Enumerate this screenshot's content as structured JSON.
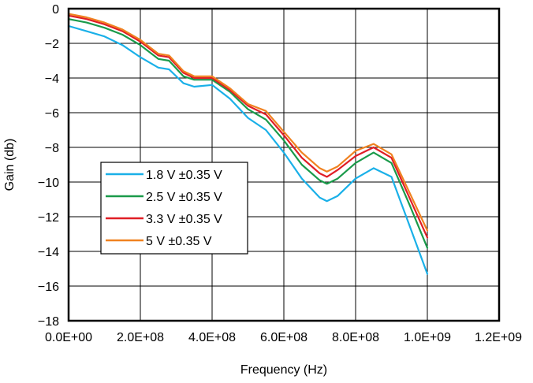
{
  "chart_data": {
    "type": "line",
    "title": "",
    "xlabel": "Frequency (Hz)",
    "ylabel": "Gain (db)",
    "xlim": [
      0,
      1200000000
    ],
    "ylim": [
      -18,
      0
    ],
    "x_tick_labels": [
      "0.0E+00",
      "2.0E+08",
      "4.0E+08",
      "6.0E+08",
      "8.0E+08",
      "1.0E+09",
      "1.2E+09"
    ],
    "y_tick_labels": [
      "0",
      "−2",
      "−4",
      "−6",
      "−8",
      "−10",
      "−12",
      "−14",
      "−16",
      "−18"
    ],
    "grid": true,
    "legend_position": "left-middle",
    "series": [
      {
        "name": "1.8 V ±0.35 V",
        "color": "#1ab0e8",
        "x": [
          0,
          50000000,
          100000000,
          150000000,
          200000000,
          250000000,
          280000000,
          320000000,
          350000000,
          400000000,
          450000000,
          500000000,
          550000000,
          600000000,
          650000000,
          700000000,
          720000000,
          750000000,
          800000000,
          850000000,
          900000000,
          950000000,
          1000000000
        ],
        "y": [
          -1.0,
          -1.3,
          -1.6,
          -2.1,
          -2.8,
          -3.4,
          -3.5,
          -4.3,
          -4.5,
          -4.4,
          -5.2,
          -6.3,
          -7.0,
          -8.3,
          -9.8,
          -10.9,
          -11.1,
          -10.8,
          -9.8,
          -9.2,
          -9.7,
          -12.5,
          -15.3
        ]
      },
      {
        "name": "2.5 V ±0.35 V",
        "color": "#1a9a4a",
        "x": [
          0,
          50000000,
          100000000,
          150000000,
          200000000,
          250000000,
          280000000,
          320000000,
          350000000,
          400000000,
          450000000,
          500000000,
          550000000,
          600000000,
          650000000,
          700000000,
          720000000,
          750000000,
          800000000,
          850000000,
          900000000,
          950000000,
          1000000000
        ],
        "y": [
          -0.6,
          -0.8,
          -1.1,
          -1.5,
          -2.1,
          -2.9,
          -3.0,
          -3.9,
          -4.1,
          -4.1,
          -4.8,
          -5.8,
          -6.4,
          -7.6,
          -9.0,
          -9.9,
          -10.1,
          -9.8,
          -8.9,
          -8.3,
          -8.9,
          -11.3,
          -13.8
        ]
      },
      {
        "name": "3.3 V ±0.35 V",
        "color": "#e01e26",
        "x": [
          0,
          50000000,
          100000000,
          150000000,
          200000000,
          250000000,
          280000000,
          320000000,
          350000000,
          400000000,
          450000000,
          500000000,
          550000000,
          600000000,
          650000000,
          700000000,
          720000000,
          750000000,
          800000000,
          850000000,
          900000000,
          950000000,
          1000000000
        ],
        "y": [
          -0.4,
          -0.6,
          -0.9,
          -1.3,
          -1.9,
          -2.7,
          -2.8,
          -3.7,
          -4.0,
          -4.0,
          -4.7,
          -5.6,
          -6.1,
          -7.3,
          -8.6,
          -9.5,
          -9.7,
          -9.3,
          -8.5,
          -8.0,
          -8.6,
          -10.9,
          -13.2
        ]
      },
      {
        "name": "5 V ±0.35 V",
        "color": "#f08220",
        "x": [
          0,
          50000000,
          100000000,
          150000000,
          200000000,
          250000000,
          280000000,
          320000000,
          350000000,
          400000000,
          450000000,
          500000000,
          550000000,
          600000000,
          650000000,
          700000000,
          720000000,
          750000000,
          800000000,
          850000000,
          900000000,
          950000000,
          1000000000
        ],
        "y": [
          -0.3,
          -0.5,
          -0.8,
          -1.2,
          -1.8,
          -2.6,
          -2.7,
          -3.6,
          -3.9,
          -3.9,
          -4.6,
          -5.5,
          -5.9,
          -7.1,
          -8.3,
          -9.2,
          -9.4,
          -9.1,
          -8.2,
          -7.8,
          -8.4,
          -10.6,
          -12.8
        ]
      }
    ]
  }
}
